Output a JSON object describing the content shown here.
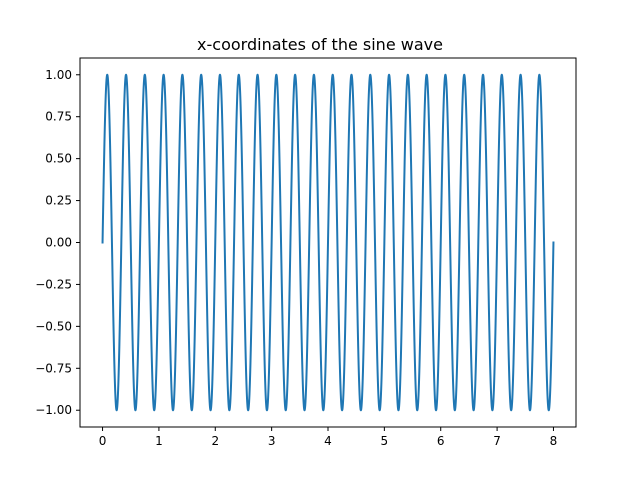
{
  "chart_data": {
    "type": "line",
    "title": "x-coordinates of the sine wave",
    "xlabel": "",
    "ylabel": "",
    "xlim": [
      -0.4,
      8.4
    ],
    "ylim": [
      -1.1,
      1.1
    ],
    "x_ticks": [
      0,
      1,
      2,
      3,
      4,
      5,
      6,
      7,
      8
    ],
    "x_tick_labels": [
      "0",
      "1",
      "2",
      "3",
      "4",
      "5",
      "6",
      "7",
      "8"
    ],
    "y_ticks": [
      -1.0,
      -0.75,
      -0.5,
      -0.25,
      0.0,
      0.25,
      0.5,
      0.75,
      1.0
    ],
    "y_tick_labels": [
      "−1.00",
      "−0.75",
      "−0.50",
      "−0.25",
      "0.00",
      "0.25",
      "0.50",
      "0.75",
      "1.00"
    ],
    "grid": false,
    "series": [
      {
        "function": "sin(2*pi*f*x)",
        "frequency": 3,
        "x_range": [
          0,
          8
        ],
        "color": "#1f77b4"
      }
    ]
  }
}
